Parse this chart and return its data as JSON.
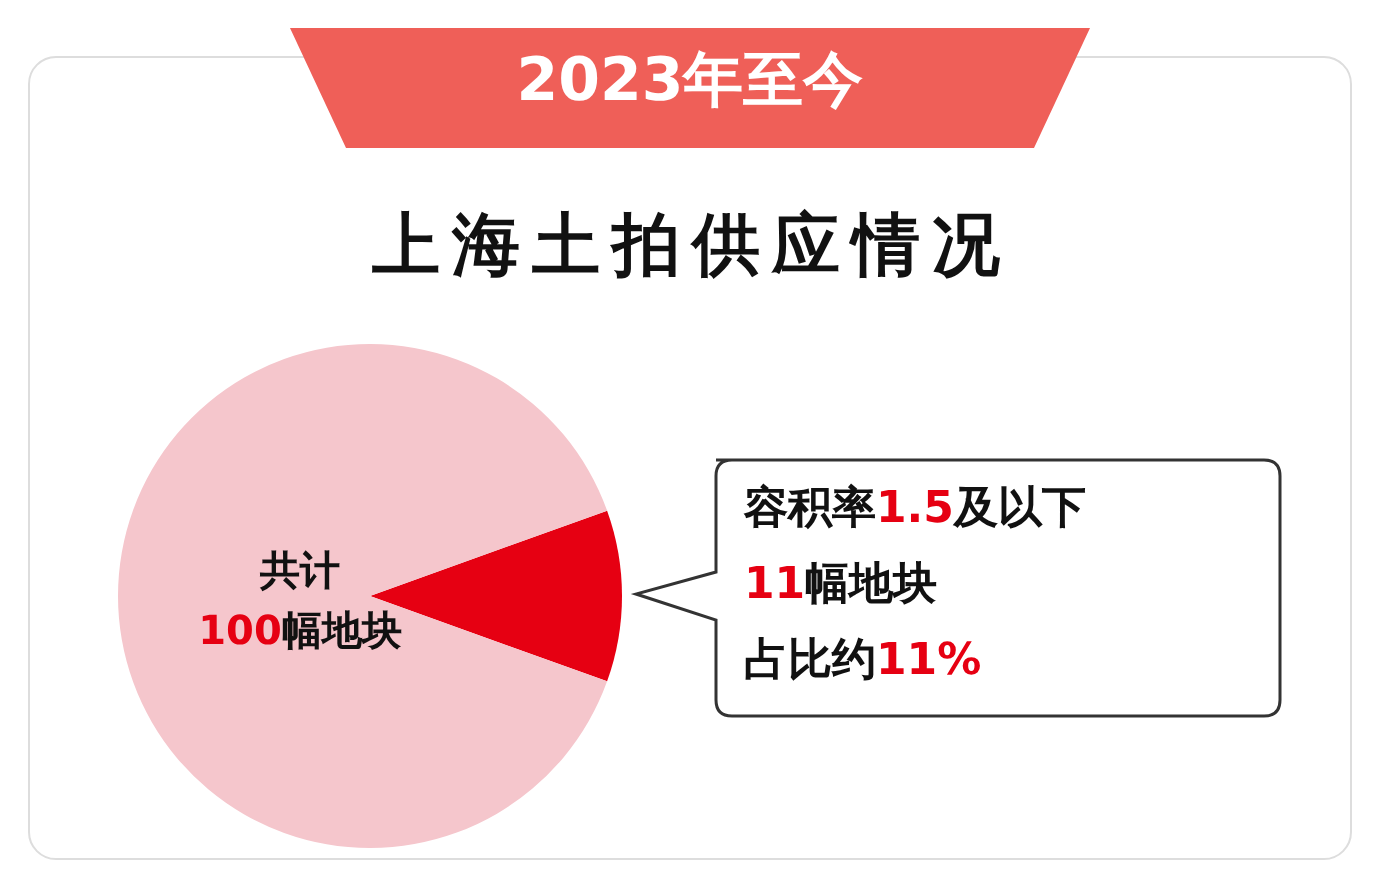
{
  "chart_data": {
    "type": "pie",
    "subtitle": "2023年至今",
    "title": "上海土拍供应情况",
    "categories": [
      "容积率1.5及以下",
      null
    ],
    "values": [
      11,
      89
    ],
    "colors": [
      "#e60012",
      "#f5c6cc"
    ],
    "legend": false,
    "annotations": [
      "共计",
      "100幅地块",
      "11幅地块",
      "占比约11%"
    ]
  }
}
